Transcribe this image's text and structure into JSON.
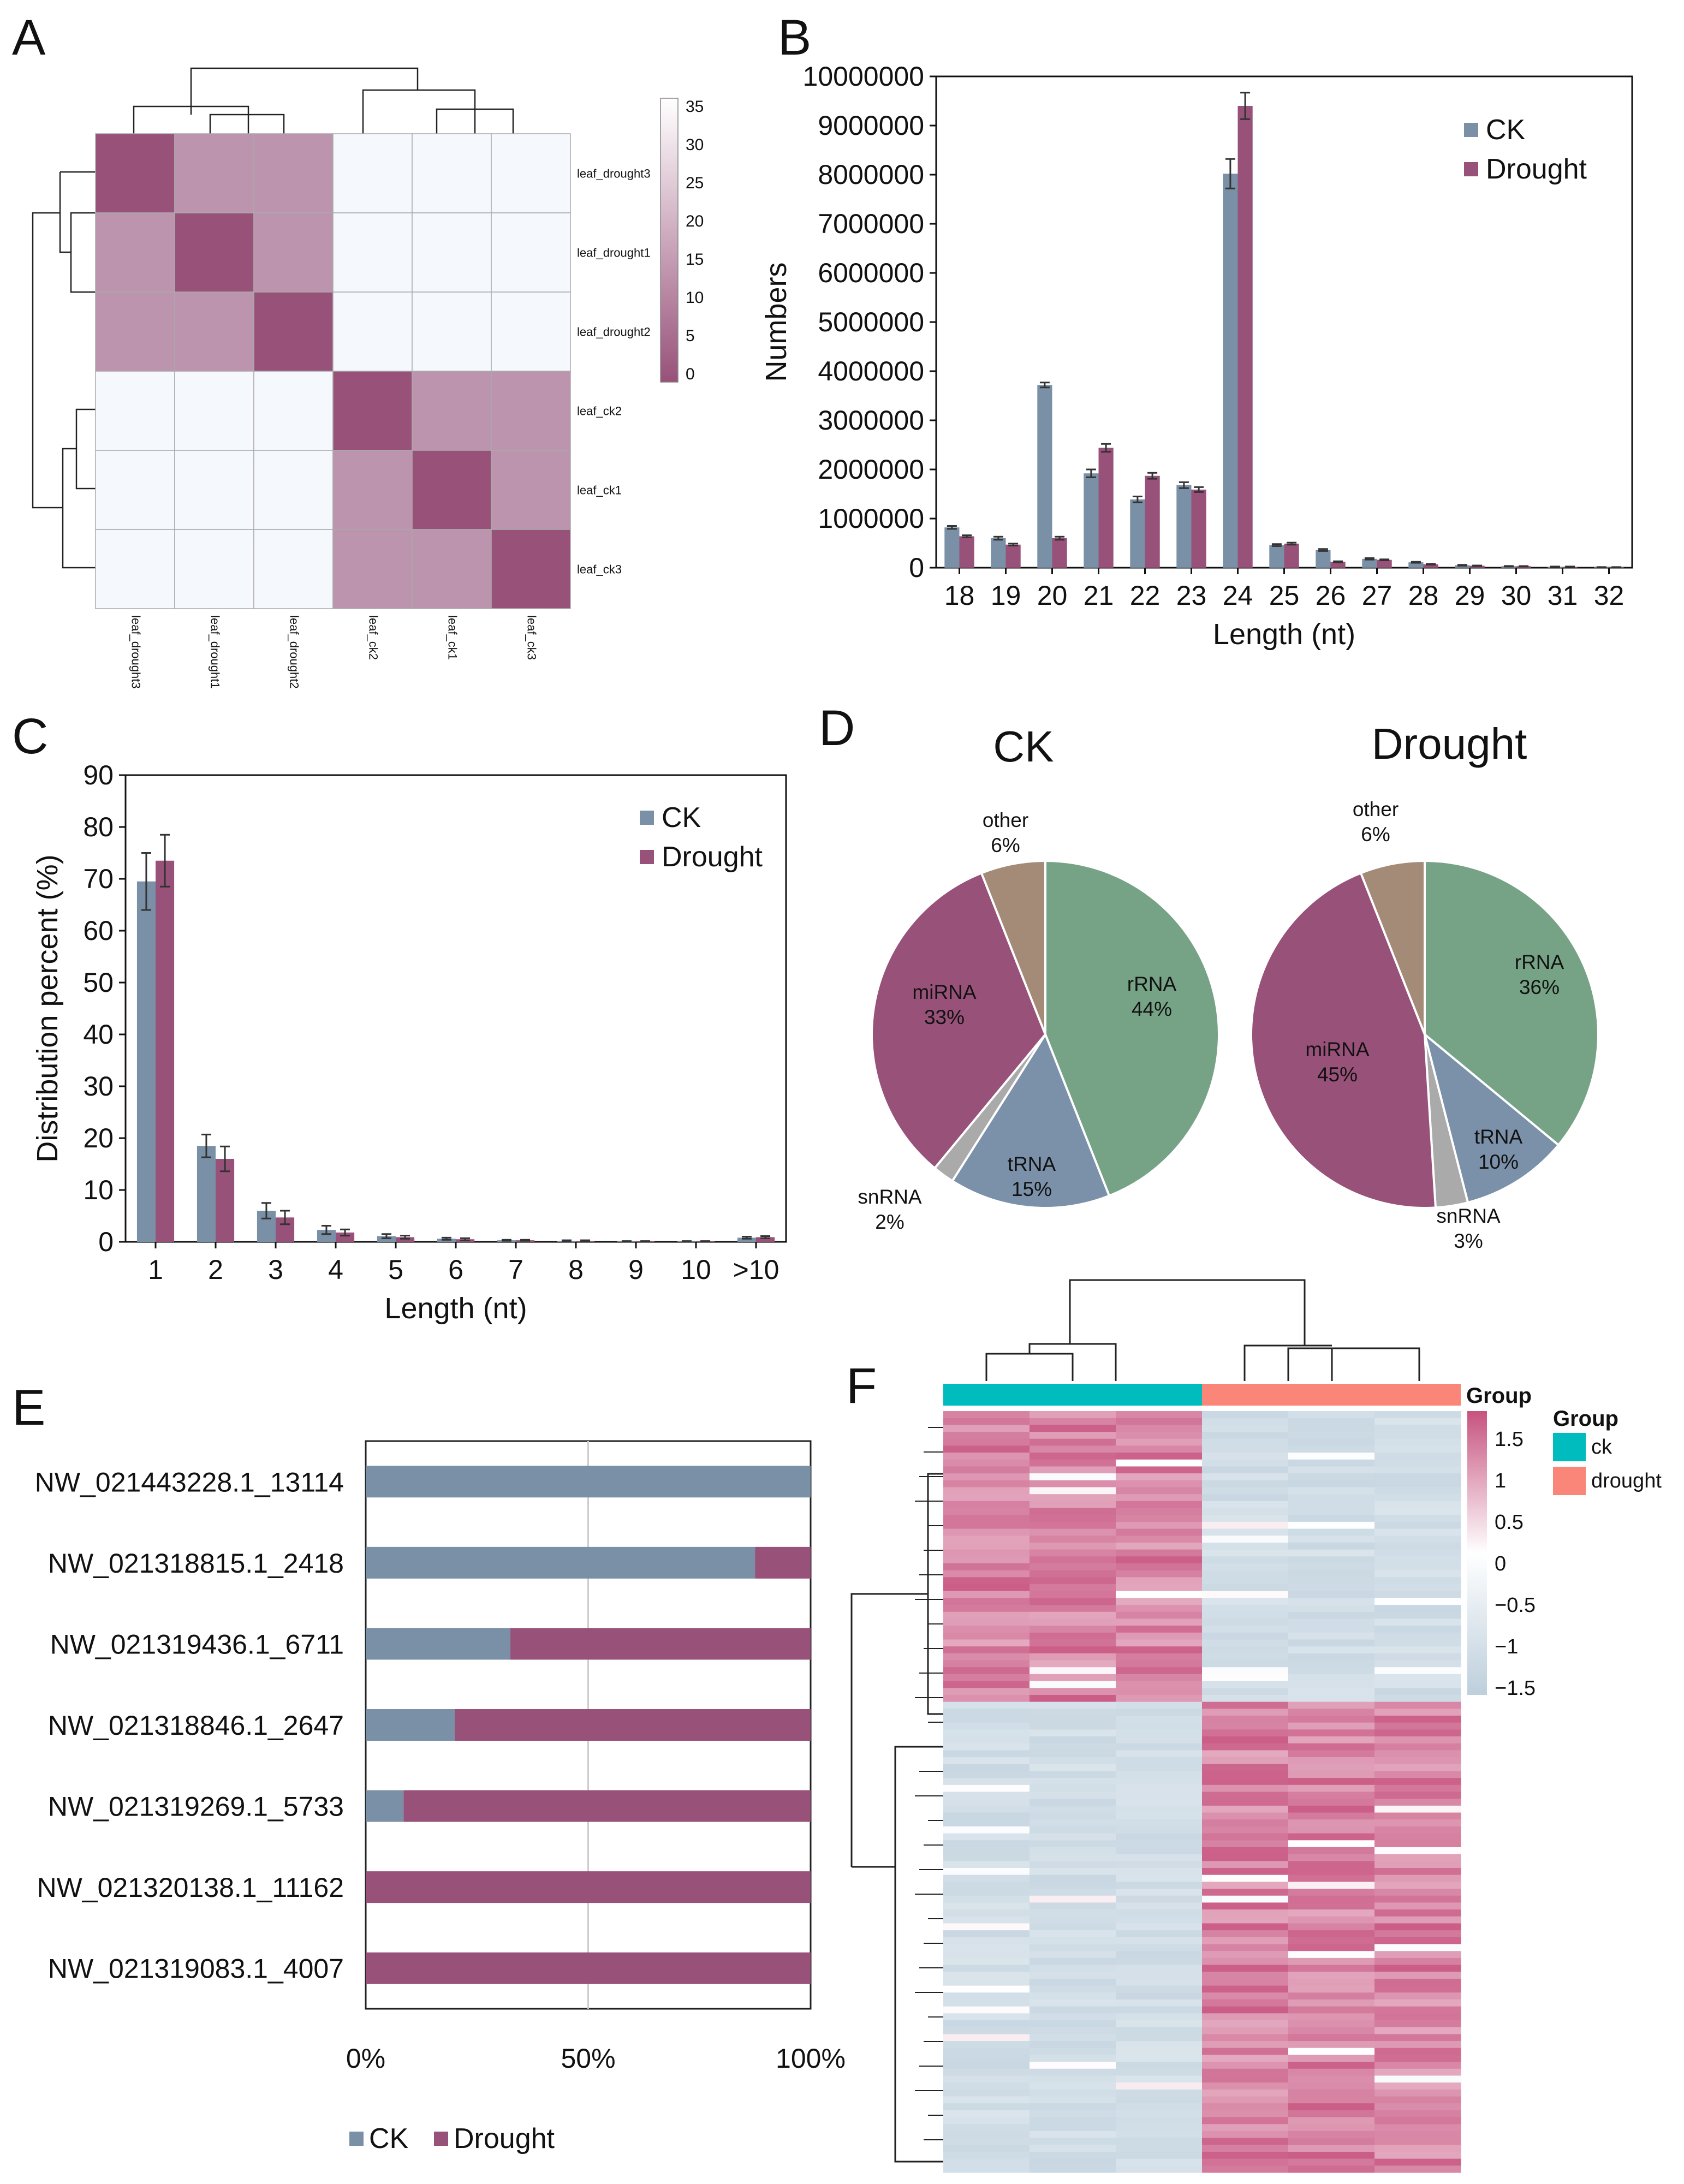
{
  "colors": {
    "ck": "#7a90a6",
    "drought": "#985179",
    "rRNA": "#76a386",
    "tRNA": "#7b91a9",
    "snRNA": "#aaaaaa",
    "miRNA": "#985179",
    "other": "#a48b78",
    "ck_group": "#00bcbf",
    "drought_group": "#f98679",
    "heat_low": "#bdcfdc",
    "heat_mid": "#ffffff",
    "heat_high": "#c7537f"
  },
  "panels": {
    "A": "A",
    "B": "B",
    "C": "C",
    "D": "D",
    "E": "E",
    "F": "F"
  },
  "chart_data": [
    {
      "panel": "A",
      "type": "heatmap",
      "title": "",
      "rows": [
        "leaf_drought3",
        "leaf_drought1",
        "leaf_drought2",
        "leaf_ck2",
        "leaf_ck1",
        "leaf_ck3"
      ],
      "columns": [
        "leaf_drought3",
        "leaf_drought1",
        "leaf_drought2",
        "leaf_ck2",
        "leaf_ck1",
        "leaf_ck3"
      ],
      "values": [
        [
          0,
          14,
          14,
          35,
          35,
          35
        ],
        [
          14,
          0,
          14,
          35,
          35,
          35
        ],
        [
          14,
          14,
          0,
          35,
          35,
          35
        ],
        [
          35,
          35,
          35,
          0,
          14,
          14
        ],
        [
          35,
          35,
          35,
          14,
          0,
          14
        ],
        [
          35,
          35,
          35,
          14,
          14,
          0
        ]
      ],
      "colorbar_ticks": [
        "35",
        "30",
        "25",
        "20",
        "15",
        "10",
        "5",
        "0"
      ],
      "zlim": [
        0,
        35
      ]
    },
    {
      "panel": "B",
      "type": "bar",
      "title": "",
      "xlabel": "Length (nt)",
      "ylabel": "Numbers",
      "ylim": [
        0,
        10000000
      ],
      "yticks": [
        "0",
        "1000000",
        "2000000",
        "3000000",
        "4000000",
        "5000000",
        "6000000",
        "7000000",
        "8000000",
        "9000000",
        "10000000"
      ],
      "categories": [
        "18",
        "19",
        "20",
        "21",
        "22",
        "23",
        "24",
        "25",
        "26",
        "27",
        "28",
        "29",
        "30",
        "31",
        "32"
      ],
      "series": [
        {
          "name": "CK",
          "values": [
            820000,
            600000,
            3720000,
            1920000,
            1390000,
            1680000,
            8020000,
            460000,
            360000,
            180000,
            110000,
            50000,
            30000,
            20000,
            10000
          ],
          "errors": [
            30000,
            30000,
            50000,
            80000,
            60000,
            60000,
            300000,
            20000,
            20000,
            15000,
            10000,
            8000,
            5000,
            4000,
            3000
          ]
        },
        {
          "name": "Drought",
          "values": [
            640000,
            470000,
            600000,
            2440000,
            1870000,
            1590000,
            9400000,
            490000,
            120000,
            160000,
            70000,
            40000,
            30000,
            20000,
            10000
          ],
          "errors": [
            20000,
            20000,
            30000,
            80000,
            60000,
            50000,
            270000,
            20000,
            10000,
            10000,
            8000,
            5000,
            4000,
            3000,
            2000
          ]
        }
      ],
      "legend": [
        "CK",
        "Drought"
      ]
    },
    {
      "panel": "C",
      "type": "bar",
      "title": "",
      "xlabel": "Length (nt)",
      "ylabel": "Distribution percent (%)",
      "ylim": [
        0,
        90
      ],
      "yticks": [
        "0",
        "10",
        "20",
        "30",
        "40",
        "50",
        "60",
        "70",
        "80",
        "90"
      ],
      "categories": [
        "1",
        "2",
        "3",
        "4",
        "5",
        "6",
        "7",
        "8",
        "9",
        "10",
        ">10"
      ],
      "series": [
        {
          "name": "CK",
          "values": [
            69.5,
            18.5,
            6.0,
            2.3,
            1.1,
            0.6,
            0.3,
            0.2,
            0.1,
            0.1,
            0.8
          ],
          "errors": [
            5.5,
            2.2,
            1.5,
            0.8,
            0.4,
            0.2,
            0.1,
            0.1,
            0.05,
            0.05,
            0.2
          ]
        },
        {
          "name": "Drought",
          "values": [
            73.5,
            16.0,
            4.7,
            1.8,
            0.9,
            0.5,
            0.3,
            0.2,
            0.1,
            0.1,
            0.9
          ],
          "errors": [
            5.0,
            2.4,
            1.3,
            0.6,
            0.3,
            0.2,
            0.1,
            0.1,
            0.05,
            0.05,
            0.2
          ]
        }
      ],
      "legend": [
        "CK",
        "Drought"
      ]
    },
    {
      "panel": "D",
      "type": "pie",
      "pies": [
        {
          "title": "CK",
          "slices": [
            {
              "name": "rRNA",
              "value": 44,
              "label": "rRNA",
              "pct": "44%"
            },
            {
              "name": "tRNA",
              "value": 15,
              "label": "tRNA",
              "pct": "15%"
            },
            {
              "name": "snRNA",
              "value": 2,
              "label": "snRNA",
              "pct": "2%"
            },
            {
              "name": "miRNA",
              "value": 33,
              "label": "miRNA",
              "pct": "33%"
            },
            {
              "name": "other",
              "value": 6,
              "label": "other",
              "pct": "6%"
            }
          ]
        },
        {
          "title": "Drought",
          "slices": [
            {
              "name": "rRNA",
              "value": 36,
              "label": "rRNA",
              "pct": "36%"
            },
            {
              "name": "tRNA",
              "value": 10,
              "label": "tRNA",
              "pct": "10%"
            },
            {
              "name": "snRNA",
              "value": 3,
              "label": "snRNA",
              "pct": "3%"
            },
            {
              "name": "miRNA",
              "value": 45,
              "label": "miRNA",
              "pct": "45%"
            },
            {
              "name": "other",
              "value": 6,
              "label": "other",
              "pct": "6%"
            }
          ]
        }
      ]
    },
    {
      "panel": "E",
      "type": "bar",
      "orientation": "horizontal-stacked-percent",
      "categories": [
        "NW_021443228.1_13114",
        "NW_021318815.1_2418",
        "NW_021319436.1_6711",
        "NW_021318846.1_2647",
        "NW_021319269.1_5733",
        "NW_021320138.1_11162",
        "NW_021319083.1_4007"
      ],
      "series": [
        {
          "name": "CK",
          "values": [
            100,
            87.5,
            32.5,
            20,
            8.5,
            0,
            0
          ]
        },
        {
          "name": "Drought",
          "values": [
            0,
            12.5,
            67.5,
            80,
            91.5,
            100,
            100
          ]
        }
      ],
      "xticks": [
        "0%",
        "50%",
        "100%"
      ],
      "xlim": [
        0,
        100
      ],
      "legend": [
        "CK",
        "Drought"
      ]
    },
    {
      "panel": "F",
      "type": "heatmap",
      "columns_group": [
        "ck",
        "ck",
        "ck",
        "drought",
        "drought",
        "drought"
      ],
      "group_label": "Group",
      "legend_title": "Group",
      "legend_items": [
        "ck",
        "drought"
      ],
      "colorbar_ticks": [
        "1.5",
        "1",
        "0.5",
        "0",
        "−0.5",
        "−1",
        "−1.5"
      ],
      "zlim": [
        -1.8,
        1.8
      ],
      "row_count": 110,
      "upregulated_in_ck_rows": 42
    }
  ]
}
